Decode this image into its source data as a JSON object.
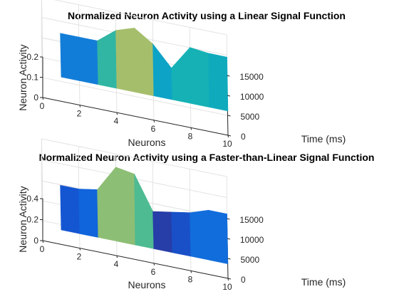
{
  "chart_data": [
    {
      "type": "surface",
      "title": "Normalized Neuron Activity using a Linear Signal Function",
      "xlabel": "Neurons",
      "ylabel": "Time (ms)",
      "zlabel": "Neuron Activity",
      "xlim": [
        0,
        10
      ],
      "ylim": [
        0,
        15000
      ],
      "zlim": [
        0,
        0.2
      ],
      "xticks": [
        "0",
        "2",
        "4",
        "6",
        "8",
        "10"
      ],
      "yticks": [
        "0",
        "5000",
        "10000",
        "15000"
      ],
      "zticks": [
        "0",
        "0.1",
        "0.2"
      ],
      "neurons": [
        1,
        2,
        3,
        4,
        5,
        6,
        7,
        8,
        9,
        10
      ],
      "activity_early": [
        0.1,
        0.1,
        0.1,
        0.1,
        0.1,
        0.1,
        0.1,
        0.1,
        0.1,
        0.1
      ],
      "activity_late": [
        0.08,
        0.08,
        0.08,
        0.15,
        0.18,
        0.12,
        0.02,
        0.14,
        0.13,
        0.13
      ]
    },
    {
      "type": "surface",
      "title": "Normalized Neuron Activity using a Faster-than-Linear Signal Function",
      "xlabel": "Neurons",
      "ylabel": "Time (ms)",
      "zlabel": "Neuron Activity",
      "xlim": [
        0,
        10
      ],
      "ylim": [
        0,
        15000
      ],
      "zlim": [
        0,
        0.4
      ],
      "xticks": [
        "0",
        "2",
        "4",
        "6",
        "8",
        "10"
      ],
      "yticks": [
        "0",
        "5000",
        "10000",
        "15000"
      ],
      "zticks": [
        "0",
        "0.2",
        "0.4"
      ],
      "neurons": [
        1,
        2,
        3,
        4,
        5,
        6,
        7,
        8,
        9,
        10
      ],
      "activity_early": [
        0.1,
        0.1,
        0.1,
        0.1,
        0.1,
        0.1,
        0.1,
        0.1,
        0.1,
        0.1
      ],
      "activity_late": [
        0.07,
        0.07,
        0.1,
        0.35,
        0.32,
        0.0,
        0.03,
        0.06,
        0.12,
        0.12
      ]
    }
  ]
}
